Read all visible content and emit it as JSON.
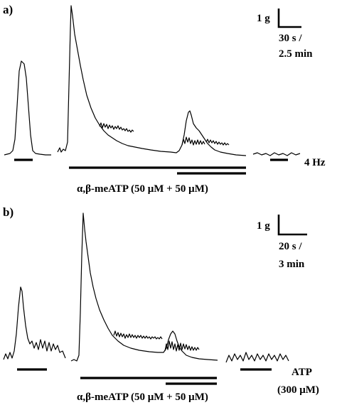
{
  "panels": [
    {
      "letter": "a)",
      "scale_force": "1 g",
      "scale_time_line1": "30 s /",
      "scale_time_line2": "2.5 min",
      "stimulus_label": "α,β-meATP (50 μM + 50 μM)",
      "right_stimulus_label": "4 Hz"
    },
    {
      "letter": "b)",
      "scale_force": "1 g",
      "scale_time_line1": "20 s /",
      "scale_time_line2": "3 min",
      "stimulus_label": "α,β-meATP (50 μM + 50 μM)",
      "right_stimulus_line1": "ATP",
      "right_stimulus_line2": "(300 μM)"
    }
  ]
}
